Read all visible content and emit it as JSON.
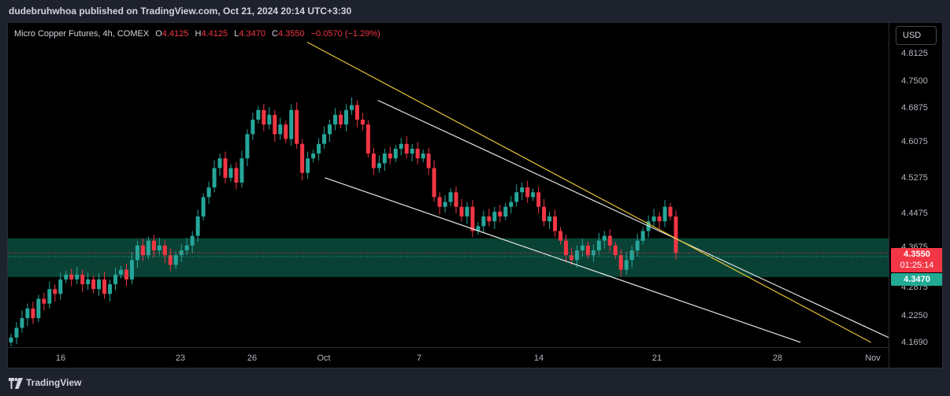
{
  "publisher_line": "dudebruhwhoa published on TradingView.com, Oct 21, 2024 20:14 UTC+3:30",
  "legend": {
    "symbol": "Micro Copper Futures, 4h, COMEX",
    "open_label": "O",
    "open": "4.4125",
    "high_label": "H",
    "high": "4.4125",
    "low_label": "L",
    "low": "4.3470",
    "close_label": "C",
    "close": "4.3550",
    "change": "−0.0570 (−1.29%)"
  },
  "currency_button": "USD",
  "price_axis": {
    "ticks": [
      "4.8125",
      "4.7500",
      "4.6875",
      "4.6075",
      "4.5275",
      "4.4475",
      "4.3675",
      "4.2875",
      "4.2250",
      "4.1690"
    ],
    "current_price": "4.3550",
    "countdown": "01:25:14",
    "low_marker": "4.3470"
  },
  "time_axis": {
    "ticks": [
      "16",
      "23",
      "26",
      "Oct",
      "7",
      "14",
      "21",
      "28",
      "Nov"
    ]
  },
  "colors": {
    "up": "#26a69a",
    "down": "#f23645",
    "zone_fill": "#0b4d3e",
    "channel_line": "#e6e6e6",
    "trend_line": "#e5c234",
    "price_tag": "#f23645",
    "low_tag": "#22ab94"
  },
  "chart_data": {
    "type": "candlestick",
    "symbol": "Micro Copper Futures",
    "interval": "4h",
    "exchange": "COMEX",
    "y_range": [
      4.16,
      4.83
    ],
    "x_range": [
      "2024-09-12",
      "2024-11-01"
    ],
    "approx_closes": [
      4.18,
      4.2,
      4.22,
      4.24,
      4.22,
      4.26,
      4.25,
      4.28,
      4.27,
      4.3,
      4.31,
      4.3,
      4.31,
      4.29,
      4.3,
      4.28,
      4.3,
      4.27,
      4.29,
      4.31,
      4.32,
      4.3,
      4.34,
      4.37,
      4.35,
      4.38,
      4.36,
      4.37,
      4.35,
      4.33,
      4.35,
      4.36,
      4.37,
      4.39,
      4.43,
      4.47,
      4.49,
      4.53,
      4.55,
      4.51,
      4.53,
      4.5,
      4.55,
      4.6,
      4.63,
      4.65,
      4.62,
      4.64,
      4.6,
      4.62,
      4.59,
      4.65,
      4.58,
      4.52,
      4.55,
      4.56,
      4.58,
      4.6,
      4.62,
      4.64,
      4.62,
      4.65,
      4.66,
      4.63,
      4.62,
      4.56,
      4.53,
      4.54,
      4.56,
      4.55,
      4.57,
      4.58,
      4.56,
      4.57,
      4.55,
      4.56,
      4.53,
      4.47,
      4.45,
      4.46,
      4.48,
      4.45,
      4.43,
      4.45,
      4.4,
      4.41,
      4.43,
      4.42,
      4.44,
      4.43,
      4.45,
      4.46,
      4.48,
      4.49,
      4.47,
      4.48,
      4.45,
      4.42,
      4.43,
      4.4,
      4.38,
      4.35,
      4.34,
      4.36,
      4.37,
      4.35,
      4.36,
      4.38,
      4.39,
      4.37,
      4.35,
      4.32,
      4.34,
      4.36,
      4.38,
      4.4,
      4.42,
      4.43,
      4.42,
      4.45,
      4.43,
      4.355
    ],
    "zone": {
      "from": 4.305,
      "to": 4.385,
      "label": "support/resistance zone"
    },
    "channel_upper": {
      "from": {
        "date": "2024-10-03",
        "price": 4.67
      },
      "to": {
        "date": "2024-11-01",
        "price": 4.18
      }
    },
    "channel_lower": {
      "from": {
        "date": "2024-09-30",
        "price": 4.51
      },
      "to": {
        "date": "2024-10-27",
        "price": 4.17
      }
    },
    "trend_line": {
      "from": {
        "date": "2024-09-29",
        "price": 4.79
      },
      "to": {
        "date": "2024-10-31",
        "price": 4.17
      }
    },
    "last_price": 4.355,
    "low_marker": 4.347
  }
}
